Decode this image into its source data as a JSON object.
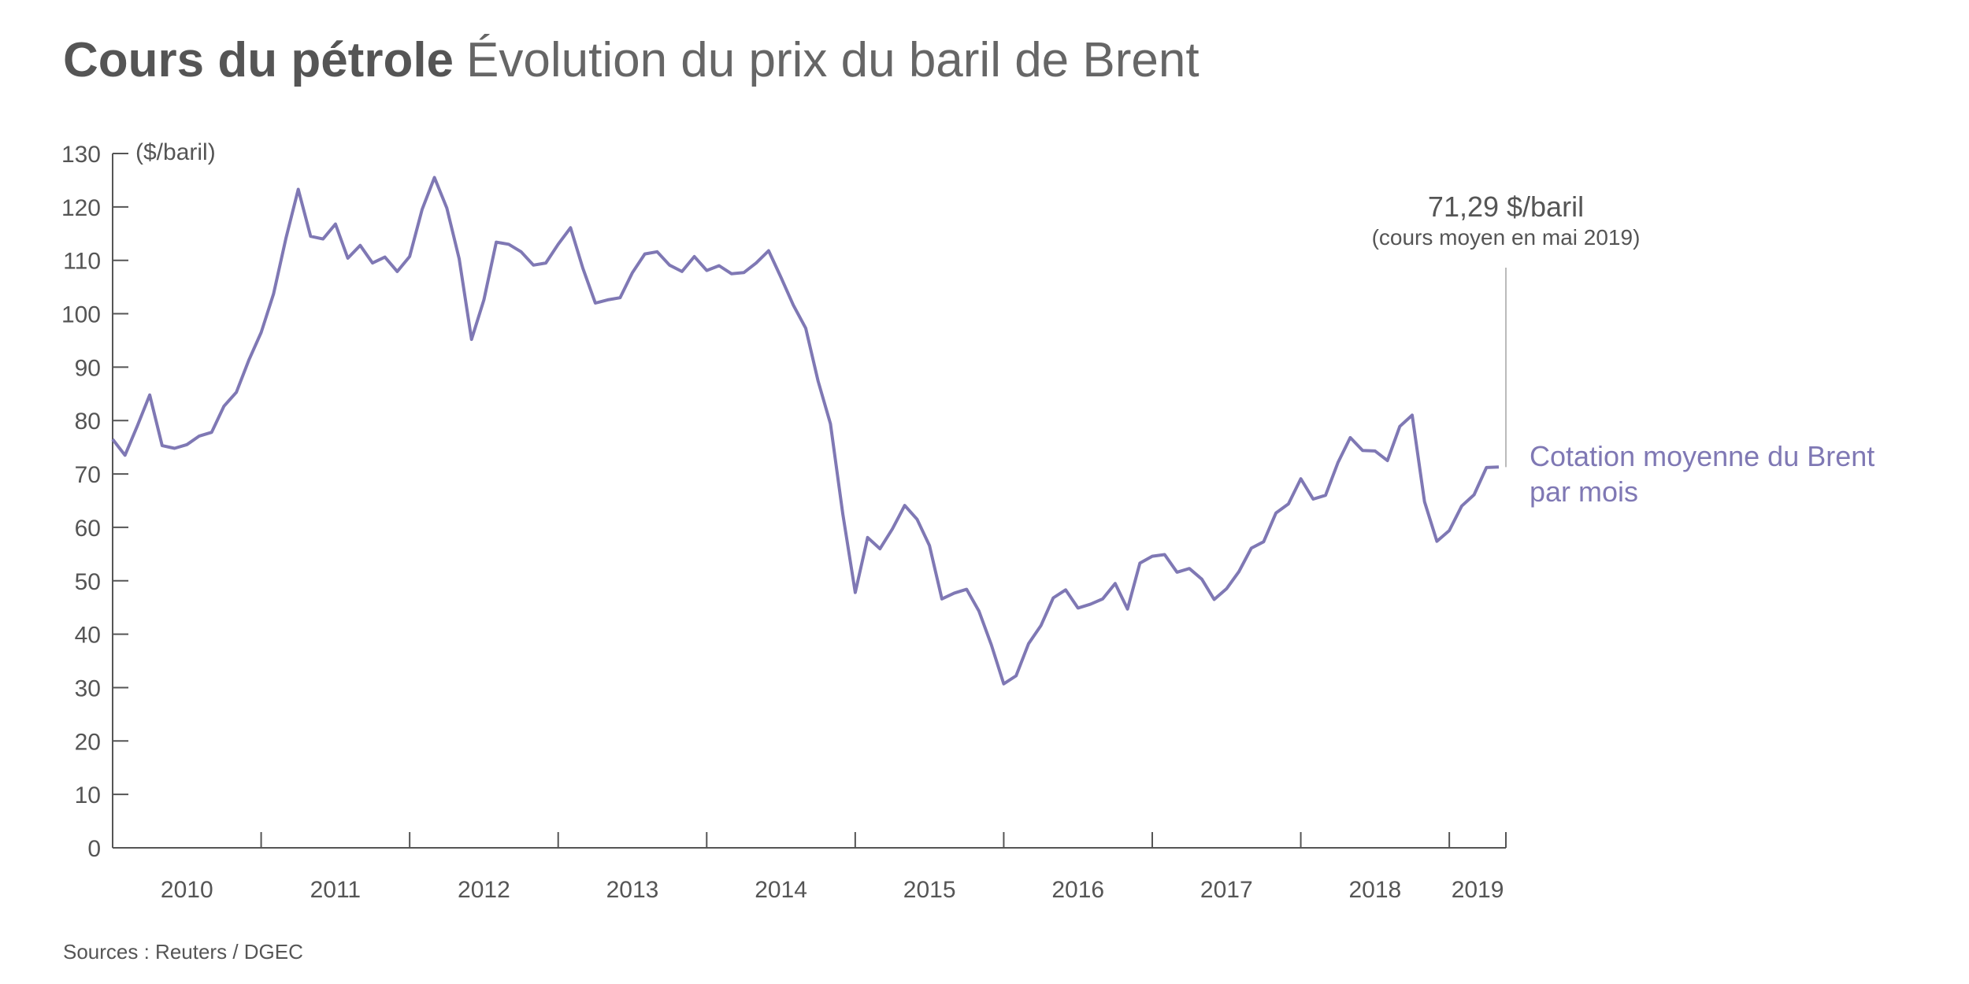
{
  "header": {
    "title_bold": "Cours du pétrole",
    "title_rest": "Évolution du prix du baril de Brent"
  },
  "source": "Sources : Reuters / DGEC",
  "colors": {
    "series": "#7f78b4",
    "text": "#555555",
    "axis": "#555555",
    "callout_line": "#bbbbbb"
  },
  "chart_data": {
    "type": "line",
    "title": "Cours du pétrole Évolution du prix du baril de Brent",
    "xlabel": "",
    "ylabel": "($/baril)",
    "ylim": [
      0,
      130
    ],
    "yticks": [
      0,
      10,
      20,
      30,
      40,
      50,
      60,
      70,
      80,
      90,
      100,
      110,
      120,
      130
    ],
    "grid": false,
    "x_start": {
      "year": 2010,
      "month": 1
    },
    "x_end": {
      "year": 2019,
      "month": 5
    },
    "year_labels": [
      "2010",
      "2011",
      "2012",
      "2013",
      "2014",
      "2015",
      "2016",
      "2017",
      "2018",
      "2019"
    ],
    "series": [
      {
        "name": "Cotation moyenne du Brent par mois",
        "legend_line1": "Cotation moyenne du Brent",
        "legend_line2": "par mois",
        "values": [
          76.5,
          73.5,
          79,
          84.8,
          75.3,
          74.8,
          75.5,
          77.1,
          77.8,
          82.7,
          85.3,
          91.3,
          96.5,
          103.7,
          114.1,
          123.3,
          114.5,
          114.0,
          116.8,
          110.4,
          112.8,
          109.5,
          110.6,
          107.9,
          110.7,
          119.5,
          125.5,
          119.8,
          110.3,
          95.2,
          102.6,
          113.4,
          113.0,
          111.6,
          109.1,
          109.5,
          113.0,
          116.1,
          108.5,
          102.0,
          102.6,
          103.0,
          107.7,
          111.2,
          111.6,
          109.1,
          107.9,
          110.7,
          108.1,
          109.0,
          107.5,
          107.7,
          109.5,
          111.8,
          106.8,
          101.6,
          97.3,
          87.4,
          79.4,
          62.5,
          47.8,
          58.1,
          56.0,
          59.7,
          64.1,
          61.5,
          56.6,
          46.6,
          47.7,
          48.4,
          44.3,
          38.0,
          30.7,
          32.2,
          38.2,
          41.6,
          46.8,
          48.3,
          44.9,
          45.6,
          46.6,
          49.5,
          44.7,
          53.3,
          54.6,
          54.9,
          51.6,
          52.3,
          50.3,
          46.5,
          48.5,
          51.7,
          56.1,
          57.3,
          62.7,
          64.4,
          69.1,
          65.3,
          66.0,
          72.1,
          76.8,
          74.4,
          74.3,
          72.5,
          78.9,
          81.0,
          64.8,
          57.4,
          59.4,
          64.0,
          66.1,
          71.2,
          71.29
        ]
      }
    ],
    "annotation": {
      "value_label": "71,29 $/baril",
      "note": "(cours moyen en mai 2019)"
    }
  }
}
